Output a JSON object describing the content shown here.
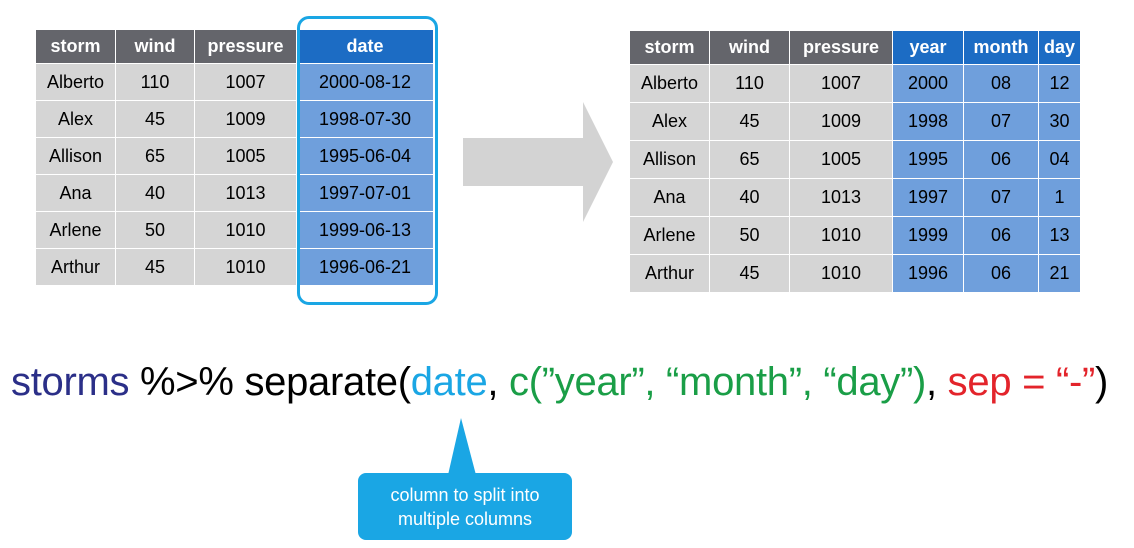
{
  "left_table": {
    "headers": [
      "storm",
      "wind",
      "pressure",
      "date"
    ],
    "rows": [
      [
        "Alberto",
        "110",
        "1007",
        "2000-08-12"
      ],
      [
        "Alex",
        "45",
        "1009",
        "1998-07-30"
      ],
      [
        "Allison",
        "65",
        "1005",
        "1995-06-04"
      ],
      [
        "Ana",
        "40",
        "1013",
        "1997-07-01"
      ],
      [
        "Arlene",
        "50",
        "1010",
        "1999-06-13"
      ],
      [
        "Arthur",
        "45",
        "1010",
        "1996-06-21"
      ]
    ]
  },
  "right_table": {
    "headers": [
      "storm",
      "wind",
      "pressure",
      "year",
      "month",
      "day"
    ],
    "rows": [
      [
        "Alberto",
        "110",
        "1007",
        "2000",
        "08",
        "12"
      ],
      [
        "Alex",
        "45",
        "1009",
        "1998",
        "07",
        "30"
      ],
      [
        "Allison",
        "65",
        "1005",
        "1995",
        "06",
        "04"
      ],
      [
        "Ana",
        "40",
        "1013",
        "1997",
        "07",
        "1"
      ],
      [
        "Arlene",
        "50",
        "1010",
        "1999",
        "06",
        "13"
      ],
      [
        "Arthur",
        "45",
        "1010",
        "1996",
        "06",
        "21"
      ]
    ]
  },
  "code": {
    "obj": "storms",
    "pipe": " %>% ",
    "fn": "separate(",
    "arg_col": "date",
    "comma1": ", ",
    "arg_into": "c(”year”, “month”, “day”)",
    "comma2": ", ",
    "arg_sep": "sep = “-”",
    "close": ")"
  },
  "callout": {
    "line1": "column to split into",
    "line2": "multiple columns"
  },
  "colors": {
    "header_gray": "#64656b",
    "header_blue": "#1c6cc4",
    "cell_gray": "#d5d5d5",
    "cell_blue": "#6f9fdc",
    "highlight": "#1aa6e4",
    "arrow": "#d3d3d3"
  }
}
